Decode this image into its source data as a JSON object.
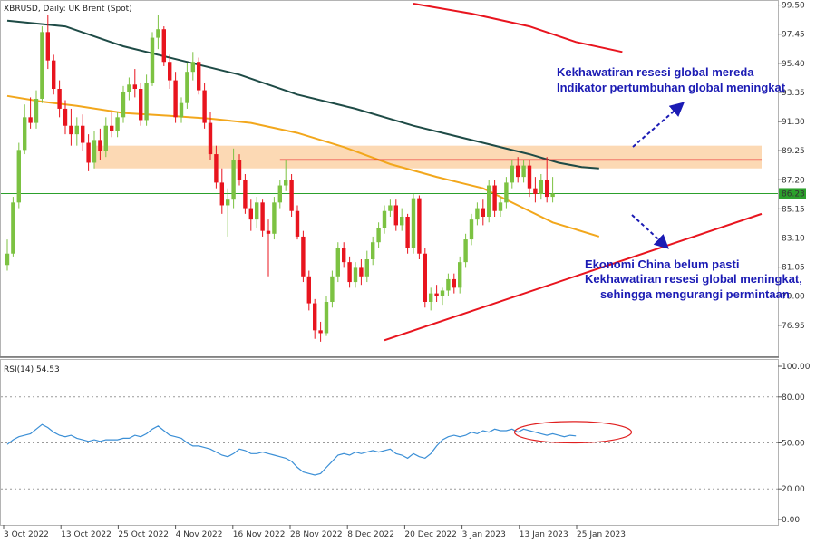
{
  "header": {
    "symbol_label": "XBRUSD, Daily:  UK Brent (Spot)"
  },
  "rsi_header": "RSI(14) 54.53",
  "price_axis_ticks": [
    "99.50",
    "97.45",
    "95.40",
    "93.35",
    "91.30",
    "89.25",
    "87.20",
    "85.15",
    "83.10",
    "81.05",
    "79.00",
    "76.95"
  ],
  "current_price_label": "86.23",
  "rsi_axis_ticks": [
    "100.00",
    "80.00",
    "50.00",
    "20.00",
    "0.00"
  ],
  "date_labels": [
    "3 Oct 2022",
    "13 Oct 2022",
    "25 Oct 2022",
    "4 Nov 2022",
    "16 Nov 2022",
    "28 Nov 2022",
    "8 Dec 2022",
    "20 Dec 2022",
    "3 Jan 2023",
    "13 Jan 2023",
    "25 Jan 2023"
  ],
  "annotations": {
    "top": [
      "Kekhawatiran resesi global mereda",
      "Indikator pertumbuhan global meningkat"
    ],
    "bottom": [
      "Ekonomi China belum pasti",
      "Kekhawatiran resesi global meningkat,",
      "sehingga mengurangi permintaan"
    ]
  },
  "colors": {
    "bull": "#7cc242",
    "bear": "#e8141e",
    "ma_slow": "#e8141e",
    "ma_mid": "#1e4b46",
    "ma_fast": "#f2a71c",
    "resistance_zone": "#fcd9b4",
    "current_line": "#2ca02c",
    "annotation_text": "#1b1bb4",
    "arrow": "#1b1bb4",
    "rsi_line": "#3b8fd6",
    "rsi_ellipse": "#e02020"
  },
  "chart_data": {
    "type": "candlestick",
    "price_range": [
      75.6,
      99.6
    ],
    "rsi_range": [
      0,
      100
    ],
    "candles": [
      {
        "o": 81.2,
        "h": 83.0,
        "l": 80.8,
        "c": 82.0
      },
      {
        "o": 82.0,
        "h": 86.0,
        "l": 81.8,
        "c": 85.6
      },
      {
        "o": 85.6,
        "h": 89.8,
        "l": 85.2,
        "c": 89.3
      },
      {
        "o": 89.3,
        "h": 92.5,
        "l": 89.0,
        "c": 91.6
      },
      {
        "o": 91.6,
        "h": 93.0,
        "l": 90.8,
        "c": 91.2
      },
      {
        "o": 91.2,
        "h": 93.5,
        "l": 90.8,
        "c": 92.9
      },
      {
        "o": 92.9,
        "h": 98.0,
        "l": 92.6,
        "c": 97.6
      },
      {
        "o": 97.6,
        "h": 98.8,
        "l": 95.0,
        "c": 95.6
      },
      {
        "o": 95.6,
        "h": 96.0,
        "l": 93.2,
        "c": 93.6
      },
      {
        "o": 93.6,
        "h": 94.2,
        "l": 91.6,
        "c": 92.2
      },
      {
        "o": 92.2,
        "h": 92.8,
        "l": 90.4,
        "c": 91.0
      },
      {
        "o": 91.0,
        "h": 92.2,
        "l": 89.6,
        "c": 90.4
      },
      {
        "o": 90.4,
        "h": 91.6,
        "l": 89.6,
        "c": 91.0
      },
      {
        "o": 91.0,
        "h": 91.8,
        "l": 89.2,
        "c": 89.8
      },
      {
        "o": 89.8,
        "h": 90.4,
        "l": 87.8,
        "c": 88.4
      },
      {
        "o": 88.4,
        "h": 90.6,
        "l": 88.0,
        "c": 90.0
      },
      {
        "o": 90.0,
        "h": 90.8,
        "l": 88.6,
        "c": 89.2
      },
      {
        "o": 89.2,
        "h": 91.6,
        "l": 88.8,
        "c": 91.0
      },
      {
        "o": 91.0,
        "h": 92.0,
        "l": 90.2,
        "c": 90.6
      },
      {
        "o": 90.6,
        "h": 92.0,
        "l": 90.2,
        "c": 91.6
      },
      {
        "o": 91.6,
        "h": 93.8,
        "l": 91.2,
        "c": 93.4
      },
      {
        "o": 93.4,
        "h": 94.4,
        "l": 92.8,
        "c": 93.9
      },
      {
        "o": 93.9,
        "h": 95.0,
        "l": 93.0,
        "c": 93.6
      },
      {
        "o": 93.6,
        "h": 94.0,
        "l": 91.0,
        "c": 91.4
      },
      {
        "o": 91.4,
        "h": 94.6,
        "l": 91.0,
        "c": 94.0
      },
      {
        "o": 94.0,
        "h": 97.6,
        "l": 93.8,
        "c": 97.2
      },
      {
        "o": 97.2,
        "h": 98.8,
        "l": 96.4,
        "c": 97.8
      },
      {
        "o": 97.8,
        "h": 98.0,
        "l": 95.2,
        "c": 95.5
      },
      {
        "o": 95.5,
        "h": 96.0,
        "l": 93.6,
        "c": 94.2
      },
      {
        "o": 94.2,
        "h": 94.8,
        "l": 91.2,
        "c": 91.6
      },
      {
        "o": 91.6,
        "h": 93.0,
        "l": 91.2,
        "c": 92.6
      },
      {
        "o": 92.6,
        "h": 95.4,
        "l": 92.2,
        "c": 94.8
      },
      {
        "o": 94.8,
        "h": 96.2,
        "l": 94.2,
        "c": 95.5
      },
      {
        "o": 95.5,
        "h": 95.8,
        "l": 93.2,
        "c": 93.5
      },
      {
        "o": 93.5,
        "h": 94.0,
        "l": 90.8,
        "c": 91.2
      },
      {
        "o": 91.2,
        "h": 92.0,
        "l": 88.6,
        "c": 89.0
      },
      {
        "o": 89.0,
        "h": 89.6,
        "l": 86.6,
        "c": 87.0
      },
      {
        "o": 87.0,
        "h": 88.0,
        "l": 84.8,
        "c": 85.4
      },
      {
        "o": 85.4,
        "h": 86.6,
        "l": 83.2,
        "c": 85.8
      },
      {
        "o": 85.8,
        "h": 89.4,
        "l": 85.2,
        "c": 88.6
      },
      {
        "o": 88.6,
        "h": 89.0,
        "l": 86.8,
        "c": 87.2
      },
      {
        "o": 87.2,
        "h": 87.6,
        "l": 84.8,
        "c": 85.2
      },
      {
        "o": 85.2,
        "h": 85.8,
        "l": 83.6,
        "c": 84.4
      },
      {
        "o": 84.4,
        "h": 86.0,
        "l": 83.8,
        "c": 85.6
      },
      {
        "o": 85.6,
        "h": 85.8,
        "l": 83.2,
        "c": 83.6
      },
      {
        "o": 83.6,
        "h": 84.4,
        "l": 80.4,
        "c": 83.4
      },
      {
        "o": 83.4,
        "h": 86.0,
        "l": 83.0,
        "c": 85.6
      },
      {
        "o": 85.6,
        "h": 87.2,
        "l": 85.2,
        "c": 86.8
      },
      {
        "o": 86.8,
        "h": 88.6,
        "l": 86.4,
        "c": 87.2
      },
      {
        "o": 87.2,
        "h": 87.6,
        "l": 84.6,
        "c": 85.0
      },
      {
        "o": 85.0,
        "h": 85.4,
        "l": 83.0,
        "c": 83.2
      },
      {
        "o": 83.2,
        "h": 83.6,
        "l": 80.0,
        "c": 80.4
      },
      {
        "o": 80.4,
        "h": 80.8,
        "l": 78.0,
        "c": 78.5
      },
      {
        "o": 78.5,
        "h": 78.8,
        "l": 76.0,
        "c": 76.6
      },
      {
        "o": 76.6,
        "h": 77.2,
        "l": 75.8,
        "c": 76.4
      },
      {
        "o": 76.4,
        "h": 79.0,
        "l": 76.2,
        "c": 78.6
      },
      {
        "o": 78.6,
        "h": 80.8,
        "l": 78.2,
        "c": 80.4
      },
      {
        "o": 80.4,
        "h": 82.8,
        "l": 80.0,
        "c": 82.4
      },
      {
        "o": 82.4,
        "h": 82.8,
        "l": 81.0,
        "c": 81.4
      },
      {
        "o": 81.4,
        "h": 81.8,
        "l": 79.6,
        "c": 80.0
      },
      {
        "o": 80.0,
        "h": 81.4,
        "l": 79.6,
        "c": 81.0
      },
      {
        "o": 81.0,
        "h": 81.6,
        "l": 79.8,
        "c": 80.4
      },
      {
        "o": 80.4,
        "h": 82.2,
        "l": 80.0,
        "c": 81.6
      },
      {
        "o": 81.6,
        "h": 83.2,
        "l": 81.2,
        "c": 82.8
      },
      {
        "o": 82.8,
        "h": 84.2,
        "l": 82.4,
        "c": 83.8
      },
      {
        "o": 83.8,
        "h": 85.4,
        "l": 83.4,
        "c": 85.0
      },
      {
        "o": 85.0,
        "h": 85.8,
        "l": 84.6,
        "c": 85.4
      },
      {
        "o": 85.4,
        "h": 85.8,
        "l": 83.6,
        "c": 84.0
      },
      {
        "o": 84.0,
        "h": 85.2,
        "l": 83.6,
        "c": 84.6
      },
      {
        "o": 84.6,
        "h": 84.8,
        "l": 82.0,
        "c": 82.4
      },
      {
        "o": 82.4,
        "h": 86.2,
        "l": 82.0,
        "c": 85.9
      },
      {
        "o": 85.9,
        "h": 86.1,
        "l": 81.6,
        "c": 82.0
      },
      {
        "o": 82.0,
        "h": 82.4,
        "l": 78.2,
        "c": 78.6
      },
      {
        "o": 78.6,
        "h": 79.6,
        "l": 78.0,
        "c": 79.2
      },
      {
        "o": 79.2,
        "h": 79.8,
        "l": 78.6,
        "c": 79.0
      },
      {
        "o": 79.0,
        "h": 79.6,
        "l": 78.4,
        "c": 79.4
      },
      {
        "o": 79.4,
        "h": 80.6,
        "l": 79.0,
        "c": 80.2
      },
      {
        "o": 80.2,
        "h": 80.6,
        "l": 79.2,
        "c": 79.6
      },
      {
        "o": 79.6,
        "h": 81.8,
        "l": 79.2,
        "c": 81.4
      },
      {
        "o": 81.4,
        "h": 83.4,
        "l": 81.0,
        "c": 83.0
      },
      {
        "o": 83.0,
        "h": 84.8,
        "l": 82.6,
        "c": 84.4
      },
      {
        "o": 84.4,
        "h": 85.6,
        "l": 84.0,
        "c": 85.2
      },
      {
        "o": 85.2,
        "h": 85.8,
        "l": 84.0,
        "c": 84.6
      },
      {
        "o": 84.6,
        "h": 87.2,
        "l": 84.2,
        "c": 86.8
      },
      {
        "o": 86.8,
        "h": 87.2,
        "l": 84.6,
        "c": 85.0
      },
      {
        "o": 85.0,
        "h": 86.0,
        "l": 84.6,
        "c": 85.6
      },
      {
        "o": 85.6,
        "h": 87.4,
        "l": 85.2,
        "c": 87.0
      },
      {
        "o": 87.0,
        "h": 88.6,
        "l": 86.6,
        "c": 88.2
      },
      {
        "o": 88.2,
        "h": 88.8,
        "l": 87.0,
        "c": 87.4
      },
      {
        "o": 87.4,
        "h": 88.6,
        "l": 87.0,
        "c": 88.2
      },
      {
        "o": 88.2,
        "h": 88.6,
        "l": 86.0,
        "c": 86.6
      },
      {
        "o": 86.6,
        "h": 87.4,
        "l": 85.6,
        "c": 86.2
      },
      {
        "o": 86.2,
        "h": 87.6,
        "l": 85.8,
        "c": 87.2
      },
      {
        "o": 87.2,
        "h": 88.8,
        "l": 85.6,
        "c": 86.0
      },
      {
        "o": 86.0,
        "h": 87.4,
        "l": 85.6,
        "c": 86.23
      }
    ],
    "moving_averages": [
      {
        "color_key": "ma_slow",
        "points": [
          [
            70,
            99.6
          ],
          [
            80,
            98.9
          ],
          [
            90,
            98.0
          ],
          [
            98,
            96.9
          ],
          [
            106,
            96.2
          ]
        ]
      },
      {
        "color_key": "ma_mid",
        "points": [
          [
            0,
            98.4
          ],
          [
            10,
            98.0
          ],
          [
            20,
            96.6
          ],
          [
            30,
            95.6
          ],
          [
            40,
            94.6
          ],
          [
            50,
            93.2
          ],
          [
            60,
            92.2
          ],
          [
            70,
            91.0
          ],
          [
            80,
            90.0
          ],
          [
            90,
            89.0
          ],
          [
            95,
            88.4
          ],
          [
            99,
            88.1
          ],
          [
            102,
            88.0
          ]
        ]
      },
      {
        "color_key": "ma_fast",
        "points": [
          [
            0,
            93.1
          ],
          [
            6,
            92.7
          ],
          [
            12,
            92.4
          ],
          [
            20,
            91.9
          ],
          [
            28,
            91.7
          ],
          [
            35,
            91.5
          ],
          [
            42,
            91.2
          ],
          [
            50,
            90.5
          ],
          [
            58,
            89.5
          ],
          [
            66,
            88.3
          ],
          [
            74,
            87.4
          ],
          [
            82,
            86.6
          ],
          [
            88,
            85.4
          ],
          [
            94,
            84.2
          ],
          [
            98,
            83.7
          ],
          [
            102,
            83.2
          ]
        ]
      }
    ],
    "resistance_zone": {
      "y_low": 88.0,
      "y_high": 89.6,
      "x_start": 15,
      "x_end": 130
    },
    "resistance_line": {
      "y": 88.6,
      "x_start": 47,
      "x_end": 130
    },
    "current_price": 86.23,
    "support_trendline": [
      [
        65,
        75.9
      ],
      [
        130,
        84.8
      ]
    ],
    "rsi": [
      49,
      52,
      54,
      55,
      56,
      59,
      62,
      60,
      57,
      55,
      54,
      55,
      53,
      52,
      51,
      52,
      51,
      52,
      52,
      52,
      53,
      53,
      55,
      54,
      56,
      59,
      61,
      58,
      55,
      54,
      53,
      50,
      48,
      48,
      47,
      46,
      44,
      42,
      41,
      43,
      46,
      45,
      43,
      43,
      44,
      43,
      42,
      41,
      40,
      38,
      34,
      31,
      30,
      29,
      30,
      34,
      38,
      42,
      43,
      42,
      44,
      43,
      44,
      45,
      44,
      45,
      46,
      43,
      42,
      40,
      43,
      41,
      40,
      43,
      48,
      52,
      54,
      55,
      54,
      55,
      57,
      56,
      58,
      57,
      59,
      58,
      58,
      59,
      57,
      59,
      58,
      57,
      56,
      55,
      56,
      55,
      54,
      55,
      54.53
    ],
    "rsi_levels": [
      80,
      50,
      20
    ],
    "rsi_ellipse": {
      "x_center": 97.5,
      "x_radius": 10,
      "y_center": 57,
      "y_radius": 7
    }
  }
}
